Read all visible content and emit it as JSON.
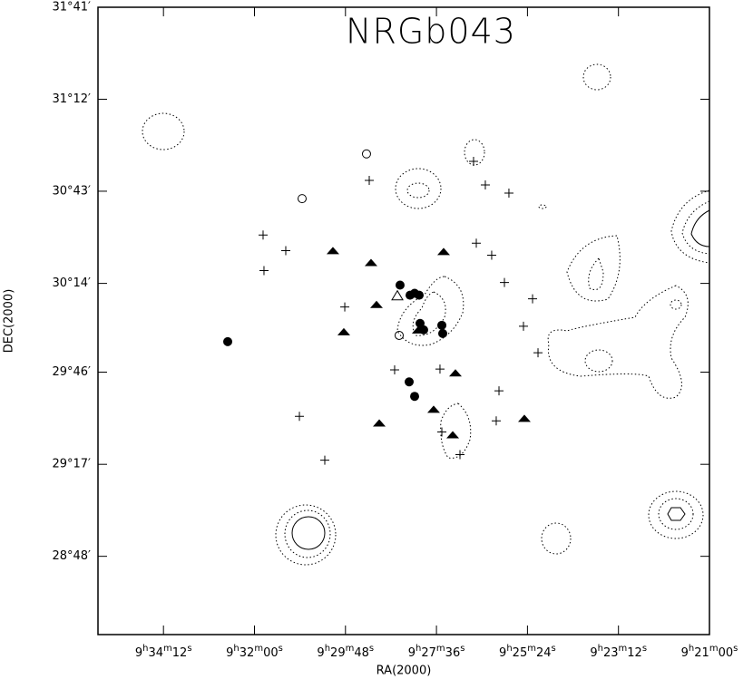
{
  "chart_data": {
    "type": "scatter",
    "title": "NRGb043",
    "x_label": "RA(2000)",
    "y_label": "DEC(2000)",
    "xlim": [
      34547,
      33660
    ],
    "ylim": [
      28.389,
      31.683
    ],
    "xticks": [
      {
        "value": 34452,
        "label": "9h34m12s"
      },
      {
        "value": 34320,
        "label": "9h32m00s"
      },
      {
        "value": 34188,
        "label": "9h29m48s"
      },
      {
        "value": 34056,
        "label": "9h27m36s"
      },
      {
        "value": 33924,
        "label": "9h25m24s"
      },
      {
        "value": 33792,
        "label": "9h23m12s"
      },
      {
        "value": 33660,
        "label": "9h21m00s"
      }
    ],
    "yticks": [
      {
        "value": 31.683,
        "label": "31°41′"
      },
      {
        "value": 31.2,
        "label": "31°12′"
      },
      {
        "value": 30.717,
        "label": "30°43′"
      },
      {
        "value": 30.233,
        "label": "30°14′"
      },
      {
        "value": 29.767,
        "label": "29°46′"
      },
      {
        "value": 29.283,
        "label": "29°17′"
      },
      {
        "value": 28.8,
        "label": "28°48′"
      }
    ],
    "series": [
      {
        "marker": "filled-circle",
        "color": "#000000",
        "x": [
          34358.8,
          34108.8,
          34094.3,
          34081.1,
          34079.8,
          34074.6,
          34048.2,
          34046.9,
          34095.6,
          34087.7,
          34087.7
        ],
        "y": [
          29.927,
          30.224,
          30.171,
          30.171,
          30.023,
          29.989,
          30.013,
          29.97,
          29.716,
          29.64,
          30.181
        ]
      },
      {
        "marker": "open-circle",
        "color": "#000000",
        "x": [
          34157.5,
          34250.9,
          34110.1
        ],
        "y": [
          30.913,
          30.678,
          29.96
        ]
      },
      {
        "marker": "open-triangle",
        "color": "#000000",
        "x": [
          34112.7
        ],
        "y": [
          30.166
        ]
      },
      {
        "marker": "filled-triangle",
        "color": "#000000",
        "x": [
          34206.2,
          34150.9,
          34045.6,
          34143.0,
          34190.4,
          34082.5,
          34028.5,
          34060.1,
          34139.0,
          34032.4,
          33928.5
        ],
        "y": [
          30.401,
          30.338,
          30.396,
          30.118,
          29.975,
          29.984,
          29.759,
          29.568,
          29.496,
          29.434,
          29.52
        ]
      },
      {
        "marker": "plus",
        "color": "#000000",
        "x": [
          34153.5,
          34002.2,
          33985.1,
          33950.9,
          34307.5,
          34274.6,
          34306.2,
          33998.2,
          33975.9,
          33957.4,
          33916.6,
          34189.0,
          33929.8,
          33908.7,
          34116.7,
          34050.9,
          33965.3,
          34254.8,
          33969.3,
          34048.2,
          34021.9,
          34218.0
        ],
        "y": [
          30.774,
          30.874,
          30.75,
          30.707,
          30.487,
          30.405,
          30.3,
          30.444,
          30.381,
          30.238,
          30.152,
          30.109,
          30.008,
          29.869,
          29.779,
          29.783,
          29.669,
          29.535,
          29.511,
          29.453,
          29.334,
          29.305
        ]
      }
    ]
  }
}
